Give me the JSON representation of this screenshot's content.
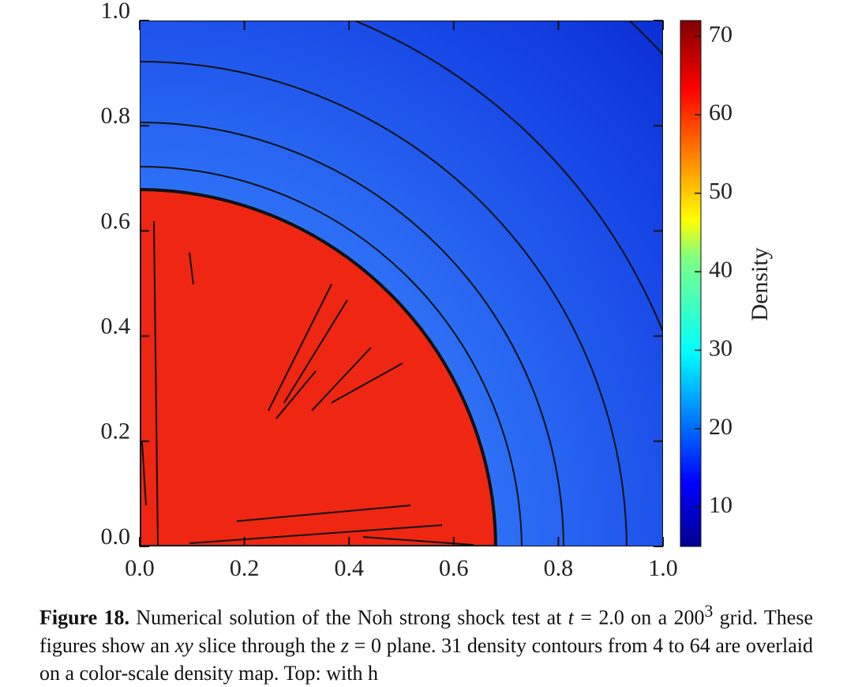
{
  "chart_data": {
    "type": "heatmap",
    "xlim": [
      0,
      1
    ],
    "ylim": [
      0,
      1
    ],
    "xticks": [
      {
        "value": 0,
        "label": "0.0"
      },
      0.2,
      0.4,
      0.6,
      0.8,
      {
        "value": 1,
        "label": "1.0"
      }
    ],
    "yticks": [
      {
        "value": 0,
        "label": "0.0"
      },
      0.2,
      0.4,
      0.6,
      0.8,
      {
        "value": 1,
        "label": "1.0"
      }
    ],
    "colorbar": {
      "label": "Density",
      "lim": [
        5,
        72
      ],
      "ticks": [
        10,
        20,
        30,
        40,
        50,
        60,
        70
      ]
    }
  },
  "caption": {
    "label": "Figure 18.",
    "segments": [
      "Numerical solution of the Noh strong shock test at ",
      "t",
      " = 2.0 on a 200",
      "3",
      " grid. These figures show an ",
      "xy",
      " slice through the ",
      "z",
      " = 0 plane. 31 density contours from 4 to 64 are overlaid on a color-scale density map. Top: with h"
    ]
  }
}
